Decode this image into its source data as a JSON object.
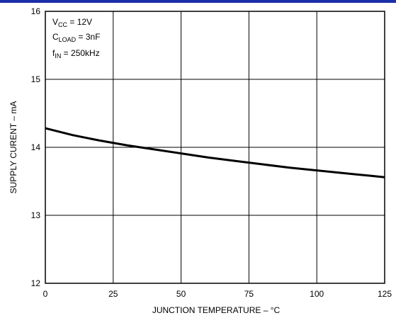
{
  "chart_data": {
    "type": "line",
    "xlabel": "JUNCTION TEMPERATURE – °C",
    "ylabel": "SUPPLY CURENT – mA",
    "xlim": [
      0,
      125
    ],
    "ylim": [
      12,
      16
    ],
    "xticks": [
      "0",
      "25",
      "50",
      "75",
      "100",
      "125"
    ],
    "yticks": [
      "12",
      "13",
      "14",
      "15",
      "16"
    ],
    "grid": true,
    "series": [
      {
        "x": [
          0,
          10,
          20,
          30,
          40,
          50,
          60,
          70,
          80,
          90,
          100,
          110,
          120,
          125
        ],
        "y": [
          14.28,
          14.18,
          14.1,
          14.03,
          13.97,
          13.91,
          13.85,
          13.8,
          13.75,
          13.7,
          13.66,
          13.62,
          13.58,
          13.56
        ]
      }
    ],
    "annotations": {
      "vcc": {
        "main": "V",
        "sub": "CC",
        "rest": " = 12V"
      },
      "cload": {
        "main": "C",
        "sub": "LOAD",
        "rest": " = 3nF"
      },
      "fin": {
        "main": "f",
        "sub": "IN",
        "rest": " = 250kHz"
      }
    }
  },
  "colors": {
    "line": "#000000",
    "grid": "#000000",
    "top_bar": "#1a2fa8"
  }
}
